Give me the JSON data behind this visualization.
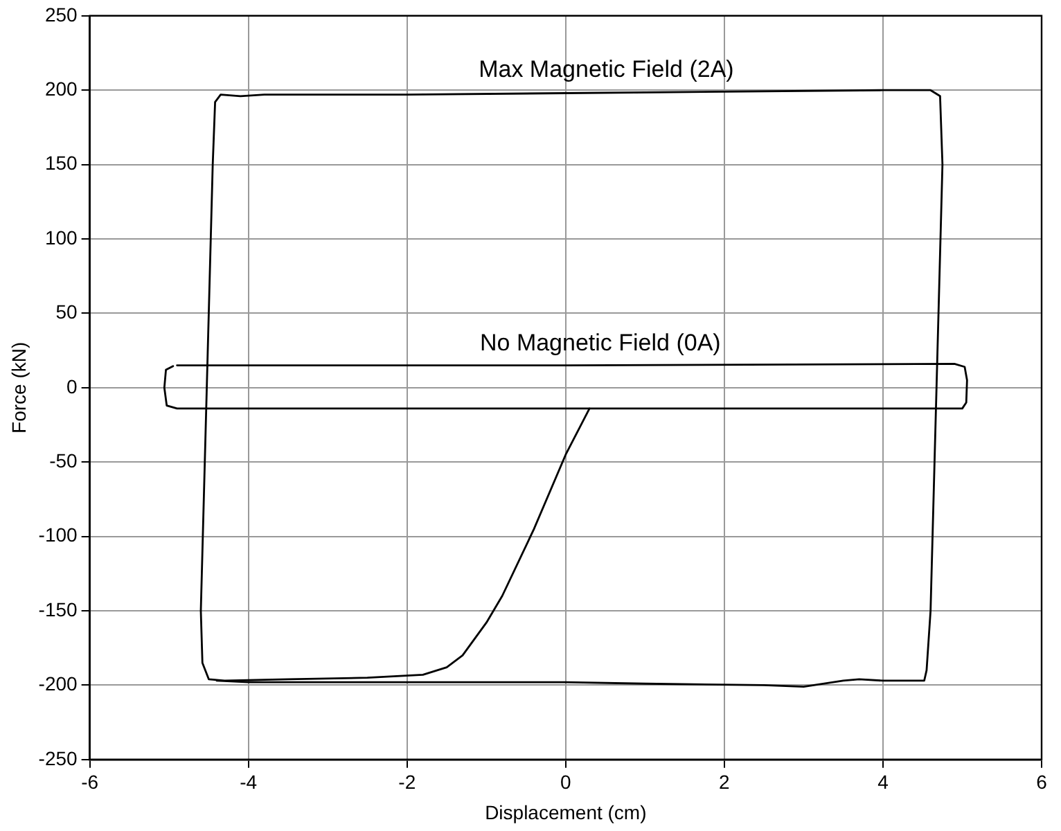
{
  "chart_data": {
    "type": "line",
    "xlabel": "Displacement (cm)",
    "ylabel": "Force (kN)",
    "xlim": [
      -6,
      6
    ],
    "xticks": [
      -6,
      -4,
      -2,
      0,
      2,
      4,
      6
    ],
    "ylim": [
      -250,
      250
    ],
    "yticks": [
      -250,
      -200,
      -150,
      -100,
      -50,
      0,
      50,
      100,
      150,
      200,
      250
    ],
    "grid": true,
    "legend": false,
    "marker": "none",
    "line_style": "solid",
    "series": [
      {
        "name": "Max Magnetic Field (2A)",
        "color": "#000000",
        "x": [
          0.3,
          0.0,
          -0.4,
          -0.8,
          -1.0,
          -1.3,
          -1.5,
          -1.8,
          -2.5,
          -3.5,
          -4.3,
          -4.5,
          -4.58,
          -4.6,
          -4.55,
          -4.5,
          -4.45,
          -4.42,
          -4.35,
          -4.1,
          -3.8,
          -2,
          0,
          2,
          4,
          4.6,
          4.72,
          4.75,
          4.7,
          4.65,
          4.6,
          4.55,
          4.52,
          4.3,
          4.0,
          3.7,
          3.5,
          3,
          2.5,
          1,
          0,
          -2,
          -4,
          -4.4
        ],
        "values": [
          -14,
          -45,
          -95,
          -140,
          -158,
          -180,
          -188,
          -193,
          -195,
          -196,
          -197,
          -196,
          -185,
          -150,
          -50,
          50,
          150,
          192,
          197,
          196,
          197,
          197,
          198,
          199,
          200,
          200,
          196,
          150,
          50,
          -50,
          -150,
          -190,
          -197,
          -197,
          -197,
          -196,
          -197,
          -201,
          -200,
          -199,
          -198,
          -198,
          -198,
          -197
        ]
      },
      {
        "name": "No Magnetic Field (0A)",
        "color": "#000000",
        "x": [
          -4.9,
          0,
          4.9,
          5.03,
          5.06,
          5.05,
          5.0,
          4.8,
          0,
          -4.9,
          -5.03,
          -5.06,
          -5.04,
          -4.95
        ],
        "values": [
          15,
          15,
          16,
          14,
          5,
          -10,
          -14,
          -14,
          -14,
          -14,
          -12,
          0,
          12,
          14.5
        ]
      }
    ]
  }
}
